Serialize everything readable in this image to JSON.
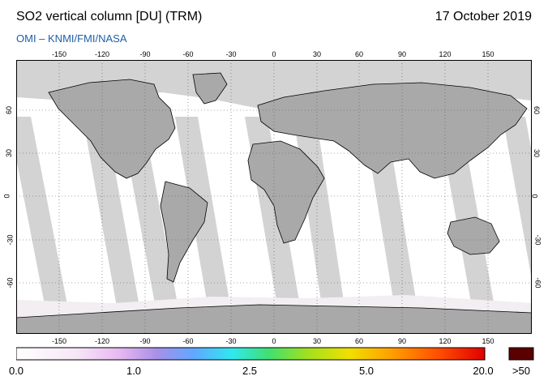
{
  "header": {
    "title": "SO2 vertical column [DU] (TRM)",
    "date": "17 October 2019",
    "source": "OMI  –  KNMI/FMI/NASA"
  },
  "map": {
    "lon_ticks": [
      "-150",
      "-120",
      "-90",
      "-60",
      "-30",
      "0",
      "30",
      "60",
      "90",
      "120",
      "150"
    ],
    "lat_ticks_left": [
      "60",
      "30",
      "0",
      "-30",
      "-60"
    ],
    "lat_ticks_right": [
      "60",
      "30",
      "0",
      "-30",
      "-60"
    ],
    "colors": {
      "land": "#a9a9a9",
      "nodata": "#d3d3d3",
      "ocean": "#ffffff",
      "grid": "#555555"
    }
  },
  "colorbar": {
    "labels": [
      "0.0",
      "1.0",
      "2.5",
      "5.0",
      "20.0",
      ">50"
    ],
    "overflow_color": "#5a0000"
  }
}
